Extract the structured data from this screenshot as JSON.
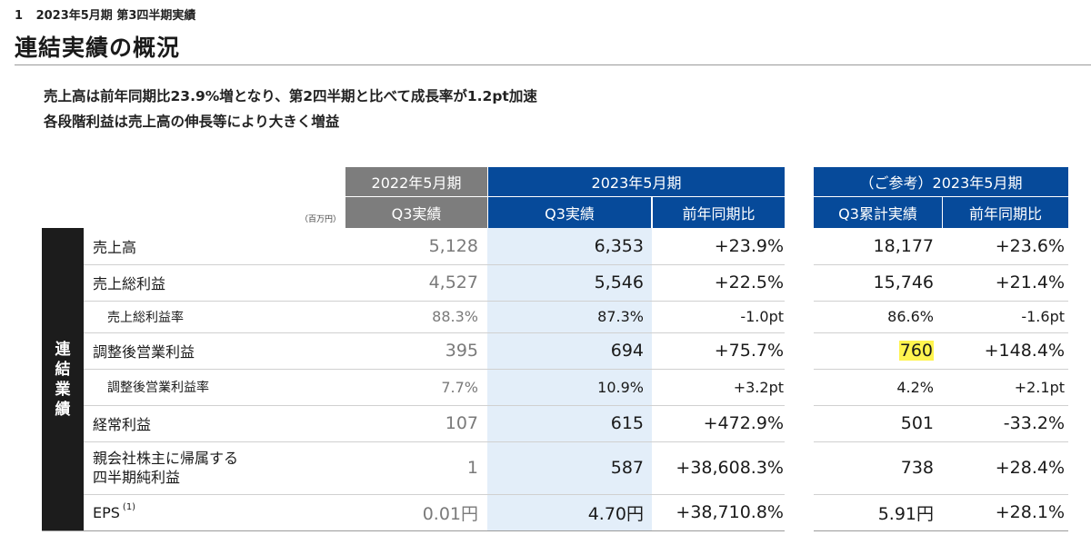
{
  "page": {
    "number": "1",
    "section": "2023年5月期 第3四半期実績",
    "title": "連結実績の概況"
  },
  "summary": [
    "売上高は前年同期比23.9%増となり、第2四半期と比べて成長率が1.2pt加速",
    "各段階利益は売上高の伸長等により大きく増益"
  ],
  "table": {
    "unit": "（百万円）",
    "group_headers": [
      "2022年5月期",
      "2023年5月期",
      "（ご参考）2023年5月期"
    ],
    "sub_headers": [
      "Q3実績",
      "Q3実績",
      "前年同期比",
      "Q3累計実績",
      "前年同期比"
    ],
    "sidebar_label": [
      "連",
      "結",
      "業",
      "績"
    ],
    "rows": [
      {
        "label": "売上高",
        "values": [
          "5,128",
          "6,353",
          "+23.9%",
          "18,177",
          "+23.6%"
        ]
      },
      {
        "label": "売上総利益",
        "values": [
          "4,527",
          "5,546",
          "+22.5%",
          "15,746",
          "+21.4%"
        ]
      },
      {
        "label": "売上総利益率",
        "values": [
          "88.3%",
          "87.3%",
          "-1.0pt",
          "86.6%",
          "-1.6pt"
        ]
      },
      {
        "label": "調整後営業利益",
        "values": [
          "395",
          "694",
          "+75.7%",
          "760",
          "+148.4%"
        ]
      },
      {
        "label": "調整後営業利益率",
        "values": [
          "7.7%",
          "10.9%",
          "+3.2pt",
          "4.2%",
          "+2.1pt"
        ]
      },
      {
        "label": "経常利益",
        "values": [
          "107",
          "615",
          "+472.9%",
          "501",
          "-33.2%"
        ]
      },
      {
        "label_lines": [
          "親会社株主に帰属する",
          "四半期純利益"
        ],
        "values": [
          "1",
          "587",
          "+38,608.3%",
          "738",
          "+28.4%"
        ]
      },
      {
        "label": "EPS",
        "footnote": "(1)",
        "values": [
          "0.01円",
          "4.70円",
          "+38,710.8%",
          "5.91円",
          "+28.1%"
        ]
      }
    ]
  },
  "colors": {
    "header_gray": "#7d7d7d",
    "header_blue": "#064a9a",
    "highlight_column": "#e3eef9",
    "marker_yellow": "#fff44f",
    "sidebar": "#1c1c1c"
  }
}
